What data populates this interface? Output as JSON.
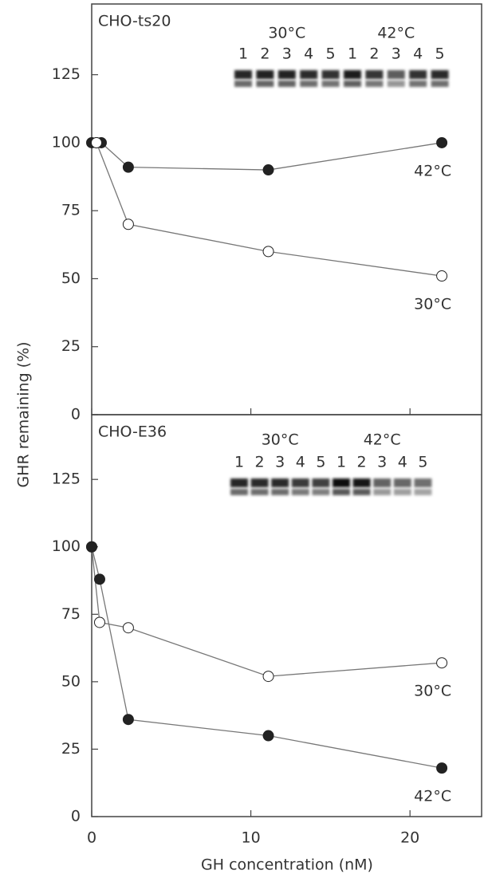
{
  "chart_data": [
    {
      "type": "line",
      "title": "CHO-ts20",
      "ylabel": "GHR remaining (%)",
      "xlim": [
        0,
        24.5
      ],
      "xticks": [
        0,
        10,
        20
      ],
      "ylim": [
        0,
        151
      ],
      "yticks": [
        0,
        25,
        50,
        75,
        100,
        125
      ],
      "blot": {
        "groups": [
          "30°C",
          "42°C"
        ],
        "lanes": [
          "1",
          "2",
          "3",
          "4",
          "5",
          "1",
          "2",
          "3",
          "4",
          "5"
        ]
      },
      "series": [
        {
          "name": "42°C",
          "marker": "filled",
          "color": "#222222",
          "x": [
            0,
            0.3,
            0.6,
            2.3,
            11.1,
            22
          ],
          "values": [
            100,
            100,
            100,
            91,
            90,
            100
          ]
        },
        {
          "name": "30°C",
          "marker": "open",
          "color": "#222222",
          "x": [
            0.3,
            2.3,
            11.1,
            22
          ],
          "values": [
            100,
            70,
            60,
            51
          ]
        }
      ]
    },
    {
      "type": "line",
      "title": "CHO-E36",
      "xlabel": "GH concentration (nM)",
      "xlim": [
        0,
        24.5
      ],
      "xticks": [
        0,
        10,
        20
      ],
      "ylim": [
        0,
        149
      ],
      "yticks": [
        0,
        25,
        50,
        75,
        100,
        125
      ],
      "blot": {
        "groups": [
          "30°C",
          "42°C"
        ],
        "lanes": [
          "1",
          "2",
          "3",
          "4",
          "5",
          "1",
          "2",
          "3",
          "4",
          "5"
        ]
      },
      "series": [
        {
          "name": "30°C",
          "marker": "open",
          "color": "#222222",
          "x": [
            0,
            0.5,
            2.3,
            11.1,
            22
          ],
          "values": [
            100,
            72,
            70,
            52,
            57
          ]
        },
        {
          "name": "42°C",
          "marker": "filled",
          "color": "#222222",
          "x": [
            0,
            0.5,
            2.3,
            11.1,
            22
          ],
          "values": [
            100,
            88,
            36,
            30,
            18
          ]
        }
      ]
    }
  ]
}
